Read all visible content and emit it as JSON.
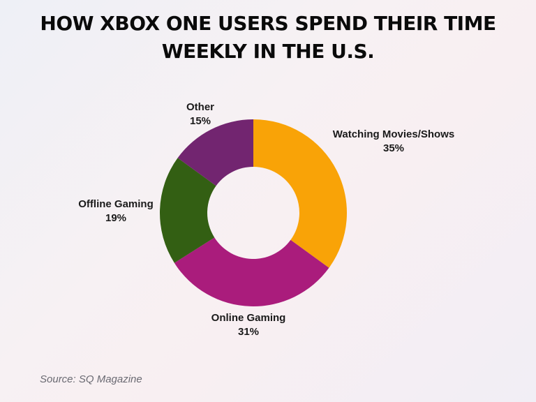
{
  "title": {
    "line1": "HOW XBOX ONE USERS SPEND THEIR TIME",
    "line2": "WEEKLY IN THE U.S."
  },
  "source": "Source: SQ Magazine",
  "chart_data": {
    "type": "pie",
    "subtype": "donut",
    "title": "HOW XBOX ONE USERS SPEND THEIR TIME WEEKLY IN THE U.S.",
    "categories": [
      "Watching Movies/Shows",
      "Online Gaming",
      "Offline Gaming",
      "Other"
    ],
    "values": [
      35,
      31,
      19,
      15
    ],
    "unit": "%",
    "colors": [
      "#f9a307",
      "#aa1c7c",
      "#335f13",
      "#722570"
    ],
    "labels": [
      {
        "name": "Watching Movies/Shows",
        "value": "35%"
      },
      {
        "name": "Online Gaming",
        "value": "31%"
      },
      {
        "name": "Offline Gaming",
        "value": "19%"
      },
      {
        "name": "Other",
        "value": "15%"
      }
    ],
    "start_angle": "12 o'clock, clockwise",
    "legend": "none (direct labels)",
    "source": "SQ Magazine"
  }
}
